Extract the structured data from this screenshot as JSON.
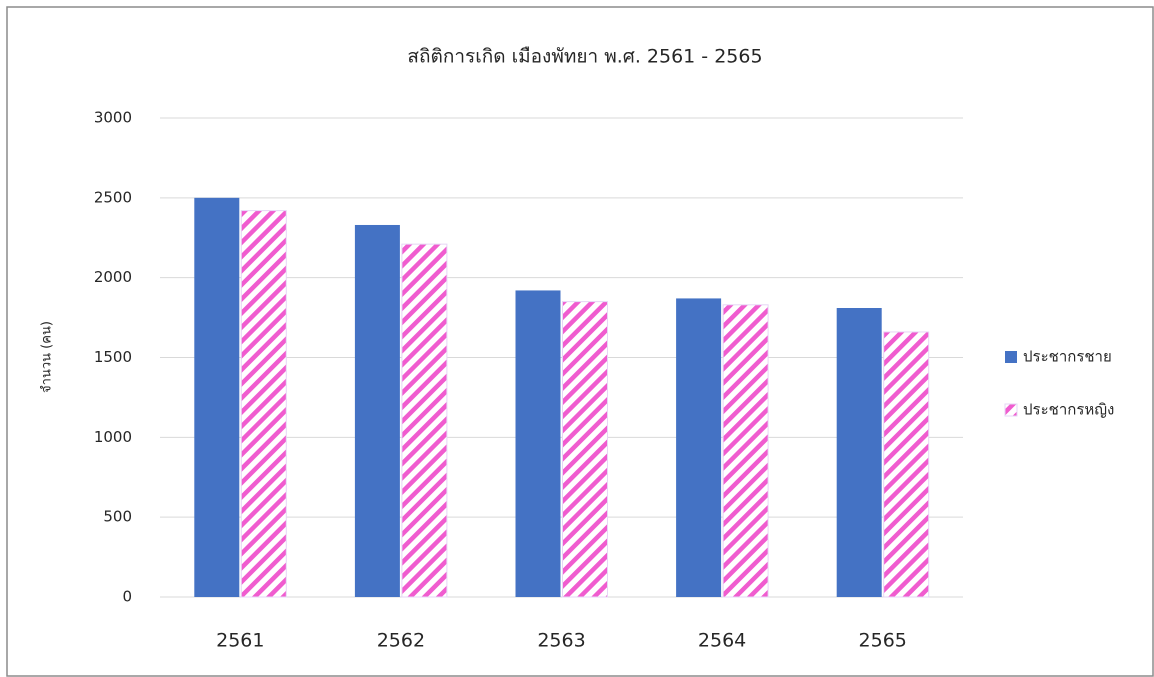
{
  "chart_data": {
    "type": "bar",
    "title": "สถิติการเกิด เมืองพัทยา พ.ศ. 2561 - 2565",
    "y_label": "จำนวน (คน)",
    "categories": [
      "2561",
      "2562",
      "2563",
      "2564",
      "2565"
    ],
    "series": [
      {
        "name": "ประชากรชาย",
        "color": "#4472c4",
        "values": [
          2500,
          2330,
          1920,
          1870,
          1810
        ]
      },
      {
        "name": "ประชากรหญิง",
        "color": "#f05ccf",
        "pattern": "diagonal",
        "values": [
          2420,
          2210,
          1850,
          1830,
          1660
        ]
      }
    ],
    "ylim": [
      0,
      3000
    ],
    "yticks": [
      0,
      500,
      1000,
      1500,
      2000,
      2500,
      3000
    ],
    "grid": true,
    "legend": "right"
  }
}
